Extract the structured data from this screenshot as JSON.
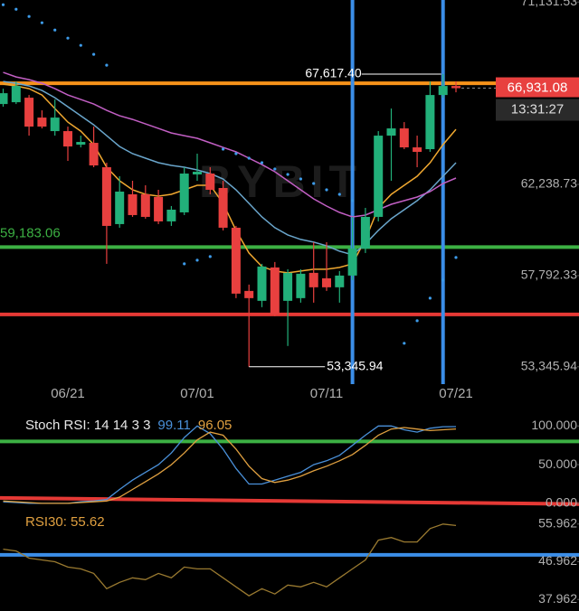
{
  "chart_data": [
    {
      "type": "candlestick",
      "watermark": "BYBIT",
      "categories": [
        null,
        null,
        null,
        null,
        null,
        "06/21",
        null,
        null,
        null,
        null,
        null,
        null,
        null,
        null,
        null,
        "07/01",
        null,
        null,
        null,
        null,
        null,
        null,
        null,
        null,
        null,
        "07/11",
        null,
        null,
        null,
        null,
        null,
        null,
        null,
        null,
        null,
        "07/21"
      ],
      "open": [
        66158,
        66246,
        66466,
        65497,
        64837,
        64837,
        64177,
        64265,
        63076,
        60303,
        61756,
        61756,
        61624,
        60435,
        60875,
        62724,
        62768,
        62064,
        60127,
        57045,
        56561,
        58190,
        56561,
        56693,
        57926,
        57662,
        57222,
        57794,
        59115,
        60655,
        64617,
        64969,
        64044,
        63957,
        66598,
        67038
      ],
      "high": [
        66906,
        67258,
        66598,
        65850,
        66378,
        65057,
        64617,
        65057,
        63296,
        62636,
        62416,
        62196,
        61976,
        61184,
        63076,
        63737,
        63076,
        62416,
        60215,
        57354,
        58366,
        58454,
        58102,
        58102,
        59423,
        59423,
        58014,
        60655,
        61095,
        64837,
        65938,
        65277,
        64617,
        67258,
        67617.4,
        67258
      ],
      "low": [
        66026,
        66158,
        64617,
        64969,
        64617,
        63384,
        64044,
        63076,
        58366,
        60127,
        60655,
        60567,
        60303,
        60215,
        60743,
        62416,
        61756,
        59995,
        56693,
        53345.94,
        56253,
        55813,
        54360,
        56473,
        56473,
        57045,
        56473,
        57574,
        58894,
        60435,
        62416,
        63957,
        63076,
        63824,
        66466,
        66730
      ],
      "close": [
        66686,
        67038,
        65057,
        65057,
        65497,
        64088,
        64309,
        63164,
        60215,
        61888,
        60743,
        60655,
        60435,
        61007,
        62768,
        62856,
        61976,
        60127,
        56913,
        56693,
        58234,
        55901,
        57926,
        57882,
        57222,
        57222,
        57794,
        59115,
        60655,
        64617,
        64969,
        64044,
        63824,
        66598,
        67038,
        66931.08
      ],
      "up_color": "#22b07a",
      "down_color": "#e8403f",
      "lines": [
        {
          "color": "#f0a830",
          "values": [
            67126,
            67038,
            66906,
            66598,
            65938,
            65277,
            64837,
            64177,
            63076,
            62416,
            61976,
            61756,
            61668,
            61756,
            61976,
            62196,
            62196,
            61316,
            59995,
            58894,
            58234,
            58014,
            57926,
            58014,
            58102,
            58102,
            58190,
            58366,
            59555,
            61095,
            61756,
            62196,
            62636,
            63296,
            64177,
            64925
          ]
        },
        {
          "color": "#6aa6cc",
          "values": [
            67258,
            67170,
            67038,
            66818,
            66466,
            66026,
            65585,
            65145,
            64617,
            64088,
            63737,
            63516,
            63296,
            63164,
            63076,
            62944,
            62768,
            62504,
            61976,
            61316,
            60655,
            60127,
            59775,
            59555,
            59423,
            59247,
            58984,
            58808,
            59335,
            59995,
            60567,
            61007,
            61448,
            61976,
            62636,
            63296
          ]
        },
        {
          "color": "#c25fc4",
          "values": [
            67698,
            67478,
            67346,
            67170,
            66906,
            66598,
            66378,
            66158,
            65850,
            65585,
            65409,
            65189,
            64969,
            64749,
            64617,
            64485,
            64265,
            64044,
            63824,
            63516,
            63204,
            62856,
            62416,
            61976,
            61536,
            61184,
            60875,
            60655,
            60743,
            61007,
            61272,
            61448,
            61624,
            61888,
            62284,
            62548
          ]
        }
      ],
      "sar": {
        "color": "#3d9be9",
        "values": [
          71000,
          70780,
          70428,
          70120,
          69767,
          69371,
          69019,
          68579,
          68050,
          null,
          null,
          null,
          null,
          null,
          58366,
          58542,
          58718,
          63957,
          63737,
          63516,
          63296,
          62988,
          62724,
          62504,
          62284,
          61976,
          61756,
          61448,
          null,
          null,
          null,
          54492,
          55593,
          56693,
          57574,
          58674
        ]
      },
      "ylim": [
        52500,
        71230
      ],
      "yticks": [
        {
          "value": 71131.53,
          "label": "71,131.53"
        },
        {
          "value": 62238.73,
          "label": "62,238.73"
        },
        {
          "value": 57792.33,
          "label": "57,792.33"
        },
        {
          "value": 53345.94,
          "label": "53,345.94"
        }
      ],
      "hlines": [
        {
          "value": 67170,
          "color": "#f7931a"
        },
        {
          "value": 59183.06,
          "color": "#3cb043",
          "label": "59,183.06"
        },
        {
          "value": 55901,
          "color": "#e53935"
        }
      ],
      "vlines": [
        {
          "index": 27,
          "color": "#3b8ee8"
        },
        {
          "index": 34,
          "color": "#3b8ee8"
        }
      ],
      "high_mark": {
        "index": 34,
        "value": 67617.4,
        "label": "67,617.40"
      },
      "low_mark": {
        "index": 19,
        "value": 53345.94,
        "label": "53,345.94"
      },
      "last_price": {
        "value": 66931.08,
        "label": "66,931.08",
        "countdown": "13:31:27",
        "color": "#e8403f"
      }
    },
    {
      "type": "line",
      "title": "Stoch RSI: 14 14 3 3",
      "series": [
        {
          "color": "#4a90d9",
          "last_label": "99.11",
          "values": [
            2,
            1,
            0,
            0,
            0,
            0,
            2,
            3,
            5,
            18,
            30,
            40,
            50,
            65,
            85,
            100,
            90,
            70,
            45,
            25,
            25,
            30,
            35,
            40,
            50,
            55,
            62,
            75,
            88,
            100,
            100,
            95,
            92,
            97,
            99,
            99.11
          ]
        },
        {
          "color": "#e0a040",
          "last_label": "96.05",
          "values": [
            3,
            2,
            1,
            0,
            0,
            0,
            1,
            2,
            3,
            8,
            18,
            28,
            38,
            50,
            65,
            82,
            92,
            88,
            70,
            48,
            32,
            27,
            30,
            35,
            42,
            48,
            55,
            63,
            75,
            88,
            96,
            98,
            96,
            94,
            95,
            96.05
          ]
        }
      ],
      "ylim": [
        -6,
        119
      ],
      "yticks": [
        {
          "value": 100,
          "label": "100.000"
        },
        {
          "value": 50,
          "label": "50.000"
        },
        {
          "value": 0,
          "label": "0.000"
        }
      ],
      "hlines": [
        {
          "value": 80,
          "color": "#3cb043"
        }
      ],
      "trendlines": [
        {
          "values": [
            7,
            -1
          ],
          "color": "#e53935"
        }
      ]
    },
    {
      "type": "line",
      "title": "RSI30: 55.62",
      "title_color": "#e0a040",
      "series": [
        {
          "color": "#9a7a30",
          "values": [
            49.96,
            49.53,
            47.82,
            47.39,
            46.96,
            45.68,
            45.25,
            44.18,
            40.54,
            42.03,
            43.11,
            42.68,
            44.18,
            43.11,
            45.68,
            45.25,
            45.25,
            43.11,
            40.96,
            38.82,
            40.54,
            39.25,
            41.39,
            40.96,
            42.03,
            40.96,
            43.11,
            45.25,
            47.39,
            52.11,
            52.75,
            51.68,
            51.68,
            54.89,
            55.96,
            55.62
          ]
        }
      ],
      "ylim": [
        35.2,
        59.8
      ],
      "yticks": [
        55.962,
        46.962,
        37.962
      ],
      "hlines": [
        {
          "value": 48.6,
          "color": "#3b8ee8"
        }
      ]
    }
  ]
}
